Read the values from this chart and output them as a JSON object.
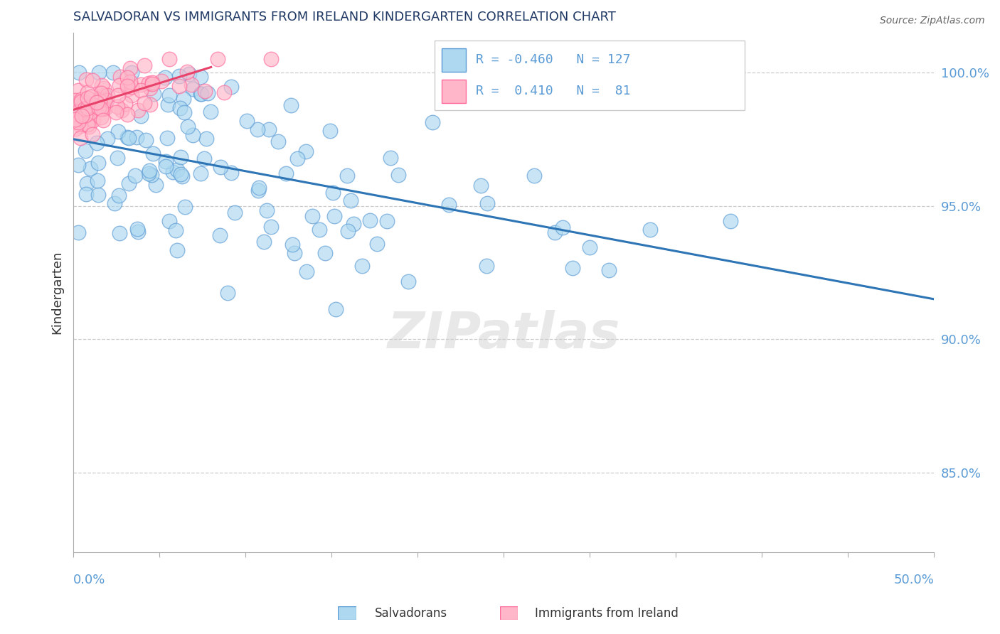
{
  "title": "SALVADORAN VS IMMIGRANTS FROM IRELAND KINDERGARTEN CORRELATION CHART",
  "source": "Source: ZipAtlas.com",
  "ylabel": "Kindergarten",
  "blue_color": "#ADD8F0",
  "pink_color": "#FFB6C8",
  "blue_edge_color": "#5B9BD5",
  "pink_edge_color": "#FF6B9D",
  "blue_line_color": "#2E75B6",
  "pink_line_color": "#E8426A",
  "title_color": "#1F3864",
  "axis_label_color": "#5B9BD5",
  "watermark": "ZIPatlas",
  "xmin": 0.0,
  "xmax": 50.0,
  "ymin": 82.0,
  "ymax": 101.5,
  "ytick_positions": [
    85.0,
    90.0,
    95.0,
    100.0
  ],
  "ytick_labels": [
    "85.0%",
    "90.0%",
    "95.0%",
    "100.0%"
  ],
  "blue_trend_x0": 0.0,
  "blue_trend_y0": 97.5,
  "blue_trend_x1": 50.0,
  "blue_trend_y1": 91.5,
  "pink_trend_x0": 0.0,
  "pink_trend_y0": 98.6,
  "pink_trend_x1": 8.0,
  "pink_trend_y1": 100.2,
  "legend_blue_r": "R = -0.460",
  "legend_blue_n": "N = 127",
  "legend_pink_r": "R =  0.410",
  "legend_pink_n": "N =  81"
}
